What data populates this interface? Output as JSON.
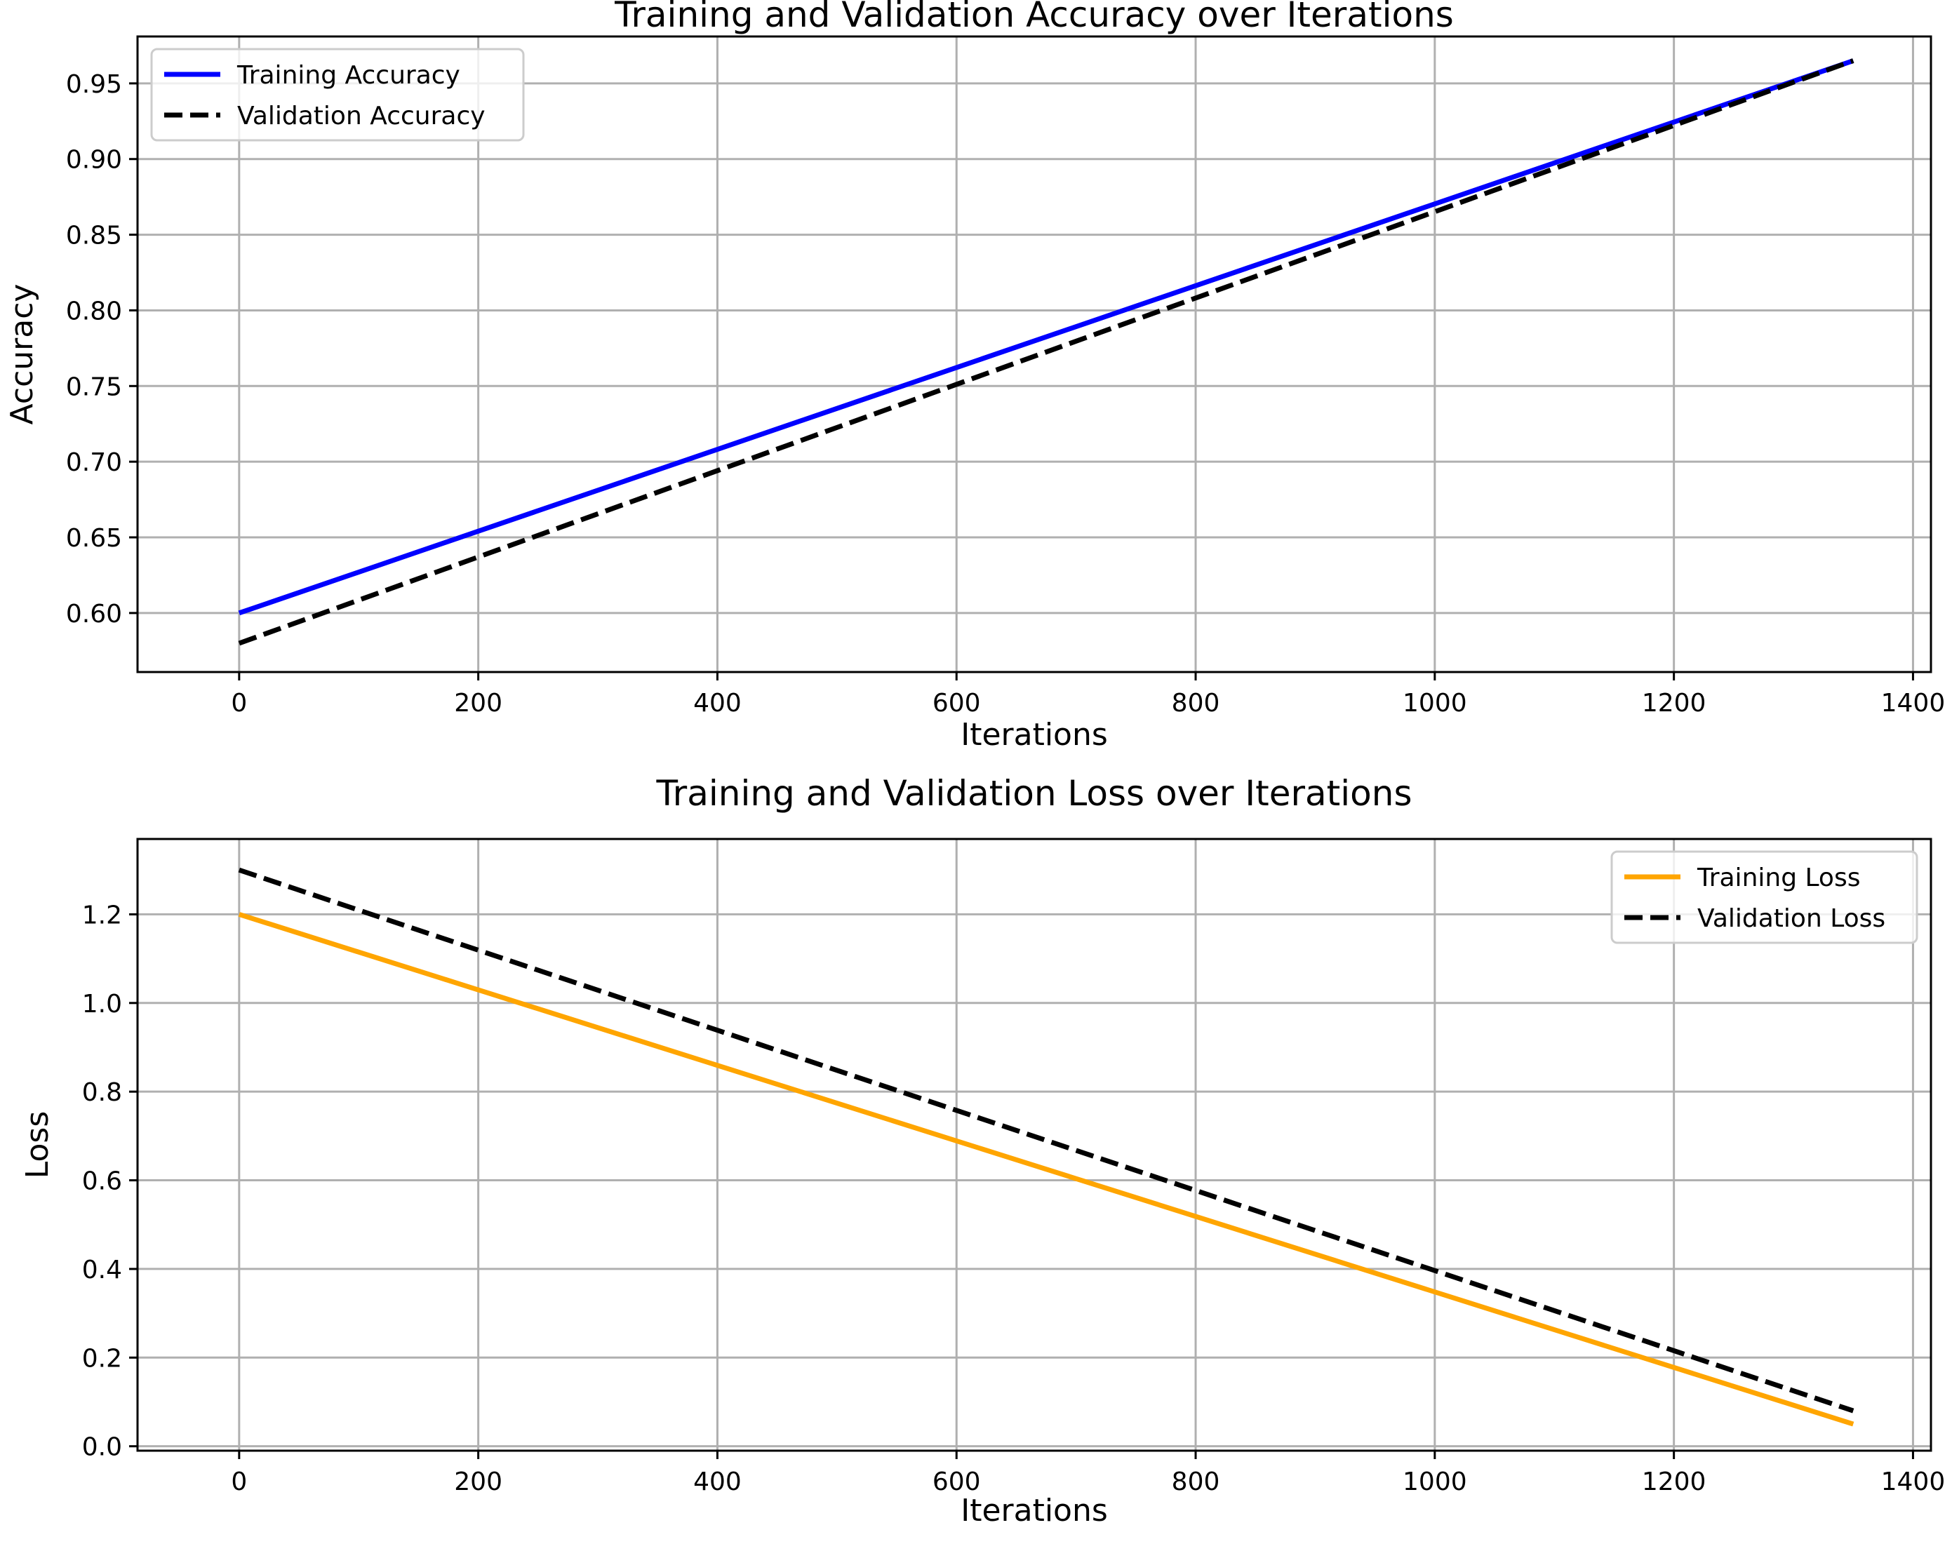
{
  "chart_data": [
    {
      "type": "line",
      "title": "Training and Validation Accuracy over Iterations",
      "xlabel": "Iterations",
      "ylabel": "Accuracy",
      "xlim": [
        -85,
        1415
      ],
      "ylim": [
        0.561,
        0.981
      ],
      "xticks": [
        0,
        200,
        400,
        600,
        800,
        1000,
        1200,
        1400
      ],
      "yticks": [
        0.6,
        0.65,
        0.7,
        0.75,
        0.8,
        0.85,
        0.9,
        0.95
      ],
      "ytick_labels": [
        "0.60",
        "0.65",
        "0.70",
        "0.75",
        "0.80",
        "0.85",
        "0.90",
        "0.95"
      ],
      "grid": true,
      "legend_position": "upper left",
      "series": [
        {
          "name": "Training Accuracy",
          "color": "#0000ff",
          "style": "solid",
          "x": [
            0,
            1350
          ],
          "y": [
            0.6,
            0.965
          ]
        },
        {
          "name": "Validation Accuracy",
          "color": "#000000",
          "style": "dashed",
          "x": [
            0,
            1350
          ],
          "y": [
            0.58,
            0.965
          ]
        }
      ]
    },
    {
      "type": "line",
      "title": "Training and Validation Loss over Iterations",
      "xlabel": "Iterations",
      "ylabel": "Loss",
      "xlim": [
        -85,
        1415
      ],
      "ylim": [
        -0.01,
        1.37
      ],
      "xticks": [
        0,
        200,
        400,
        600,
        800,
        1000,
        1200,
        1400
      ],
      "yticks": [
        0.0,
        0.2,
        0.4,
        0.6,
        0.8,
        1.0,
        1.2
      ],
      "ytick_labels": [
        "0.0",
        "0.2",
        "0.4",
        "0.6",
        "0.8",
        "1.0",
        "1.2"
      ],
      "grid": true,
      "legend_position": "upper right",
      "series": [
        {
          "name": "Training Loss",
          "color": "#ffa500",
          "style": "solid",
          "x": [
            0,
            1350
          ],
          "y": [
            1.2,
            0.05
          ]
        },
        {
          "name": "Validation Loss",
          "color": "#000000",
          "style": "dashed",
          "x": [
            0,
            1350
          ],
          "y": [
            1.3,
            0.08
          ]
        }
      ]
    }
  ]
}
